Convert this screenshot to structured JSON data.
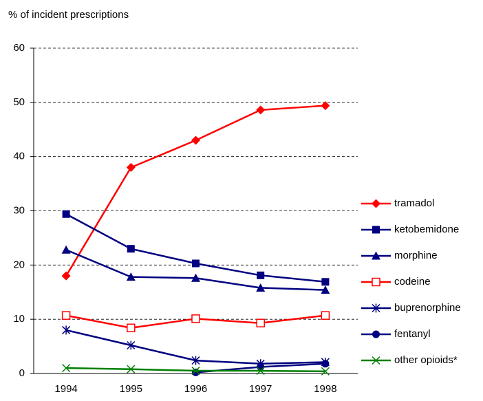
{
  "chart_data": {
    "type": "line",
    "y_label": "% of incident prescriptions",
    "categories": [
      "1994",
      "1995",
      "1996",
      "1997",
      "1998"
    ],
    "ylim": [
      0,
      60
    ],
    "yticks": [
      0,
      10,
      20,
      30,
      40,
      50,
      60
    ],
    "grid": true,
    "legend": "right",
    "series": [
      {
        "name": "tramadol",
        "color": "#ff0000",
        "marker": "diamond",
        "values": [
          18,
          38,
          43,
          48.6,
          49.4
        ]
      },
      {
        "name": "ketobemidone",
        "color": "#000080",
        "marker": "square",
        "values": [
          29.4,
          23,
          20.3,
          18.1,
          16.9
        ]
      },
      {
        "name": "morphine",
        "color": "#000080",
        "marker": "triangle",
        "values": [
          22.8,
          17.8,
          17.6,
          15.8,
          15.4
        ]
      },
      {
        "name": "codeine",
        "color": "#ff0000",
        "marker": "open-square",
        "values": [
          10.7,
          8.4,
          10.1,
          9.3,
          10.7
        ]
      },
      {
        "name": "buprenorphine",
        "color": "#000080",
        "marker": "asterisk",
        "values": [
          8,
          5.2,
          2.4,
          1.8,
          2.1
        ]
      },
      {
        "name": "fentanyl",
        "color": "#000080",
        "marker": "circle",
        "values": [
          null,
          null,
          0.2,
          1.2,
          1.8
        ]
      },
      {
        "name": "other opioids*",
        "color": "#008000",
        "marker": "x",
        "values": [
          1,
          0.8,
          0.5,
          0.5,
          0.4
        ]
      }
    ]
  }
}
